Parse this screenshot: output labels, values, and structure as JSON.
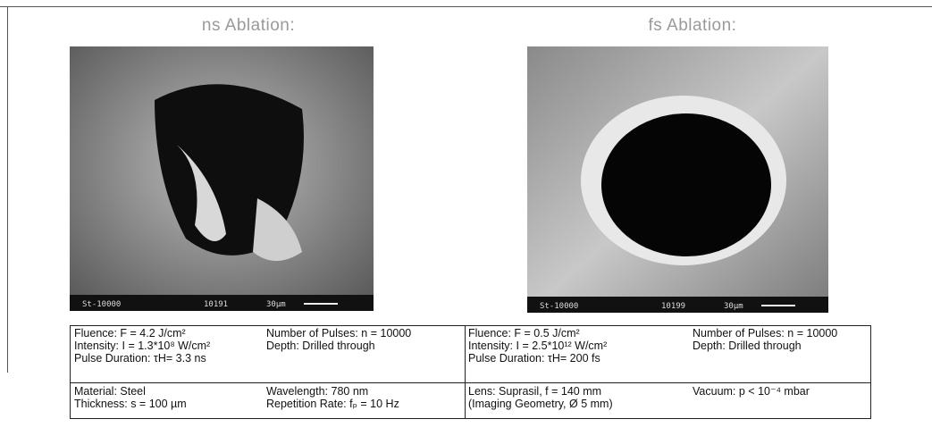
{
  "panels": [
    {
      "title": "ns Ablation:",
      "image_label": {
        "code": "St-10000",
        "number": "10191",
        "scale": "30µm"
      }
    },
    {
      "title": "fs Ablation:",
      "image_label": {
        "code": "St-10000",
        "number": "10199",
        "scale": "30µm"
      }
    }
  ],
  "table": {
    "rows": [
      [
        [
          "Fluence: F = 4.2 J/cm²",
          "Intensity: I = 1.3*10⁸ W/cm²",
          "Pulse Duration: τH= 3.3 ns"
        ],
        [
          "Number of Pulses: n = 10000",
          "Depth: Drilled through"
        ],
        [
          "Fluence: F = 0.5 J/cm²",
          "Intensity: I = 2.5*10¹² W/cm²",
          "Pulse Duration: τH= 200 fs"
        ],
        [
          "Number of Pulses: n = 10000",
          "Depth: Drilled through"
        ]
      ],
      [
        [
          "Material: Steel",
          "Thickness: s = 100 µm"
        ],
        [
          "Wavelength: 780 nm",
          "Repetition Rate: fₚ = 10 Hz"
        ],
        [
          "Lens: Suprasil, f = 140 mm",
          "(Imaging Geometry,  Ø 5 mm)"
        ],
        [
          "Vacuum: p < 10⁻⁴ mbar"
        ]
      ]
    ]
  }
}
